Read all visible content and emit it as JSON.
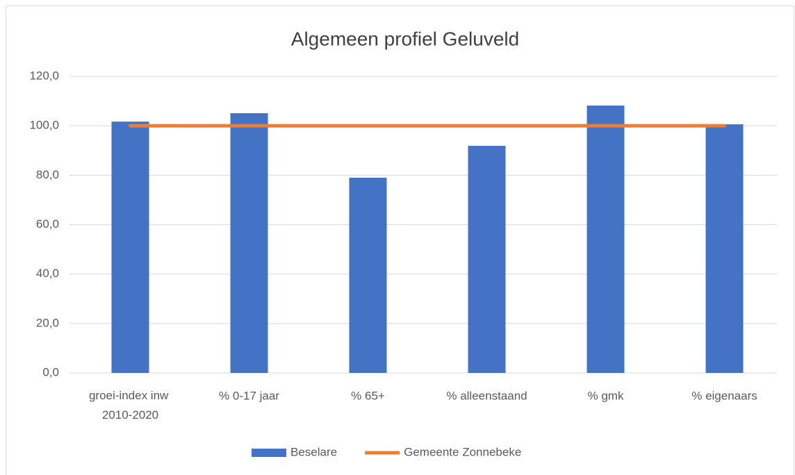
{
  "chart_data": {
    "type": "bar",
    "title": "Algemeen profiel Geluveld",
    "categories": [
      "groei-index inw 2010-2020",
      "% 0-17 jaar",
      "% 65+",
      "% alleenstaand",
      "% gmk",
      "% eigenaars"
    ],
    "series": [
      {
        "name": "Beselare",
        "type": "bar",
        "color": "#4472c4",
        "values": [
          101.7,
          105.1,
          79.0,
          91.9,
          108.2,
          100.6
        ]
      },
      {
        "name": "Gemeente Zonnebeke",
        "type": "line",
        "color": "#ed7d31",
        "values": [
          100.0,
          100.0,
          100.0,
          100.0,
          100.0,
          100.0
        ]
      }
    ],
    "ylim": [
      0,
      120
    ],
    "yticks": [
      {
        "value": 0,
        "label": "0,0"
      },
      {
        "value": 20,
        "label": "20,0"
      },
      {
        "value": 40,
        "label": "40,0"
      },
      {
        "value": 60,
        "label": "60,0"
      },
      {
        "value": 80,
        "label": "80,0"
      },
      {
        "value": 100,
        "label": "100,0"
      },
      {
        "value": 120,
        "label": "120,0"
      }
    ],
    "grid": true,
    "legend": "bottom"
  }
}
